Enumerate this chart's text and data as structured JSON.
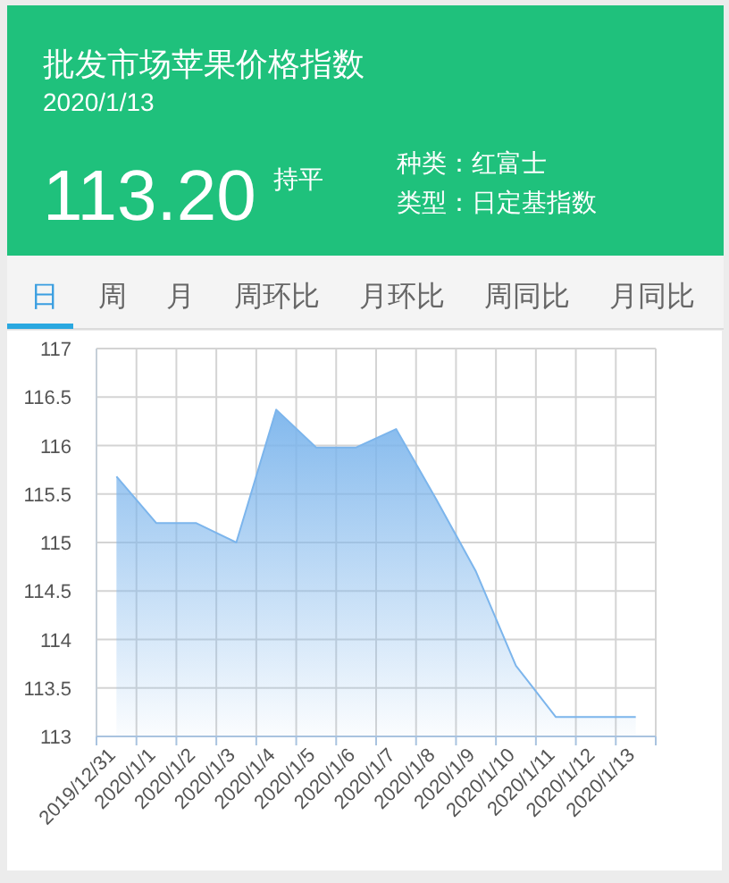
{
  "chart_data": {
    "type": "area",
    "title": "批发市场苹果价格指数",
    "subtitle": "2020/1/13",
    "annotations": [
      "113.20",
      "持平",
      "种类：红富士",
      "类型：日定基指数",
      "日",
      "周",
      "月",
      "周环比",
      "月环比",
      "周同比",
      "月同比"
    ],
    "categories": [
      "2019/12/31",
      "2020/1/1",
      "2020/1/2",
      "2020/1/3",
      "2020/1/4",
      "2020/1/5",
      "2020/1/6",
      "2020/1/7",
      "2020/1/8",
      "2020/1/9",
      "2020/1/10",
      "2020/1/11",
      "2020/1/12",
      "2020/1/13"
    ],
    "series": [
      {
        "color": "#7cb5ec",
        "values": [
          115.68,
          115.2,
          115.2,
          115.0,
          116.37,
          115.98,
          115.98,
          116.17,
          115.45,
          114.7,
          113.73,
          113.2,
          113.2,
          113.2
        ]
      }
    ],
    "ylim": [
      113,
      117
    ],
    "yticks": [
      113,
      113.5,
      114,
      114.5,
      115,
      115.5,
      116,
      116.5,
      117
    ],
    "grid": true
  }
}
